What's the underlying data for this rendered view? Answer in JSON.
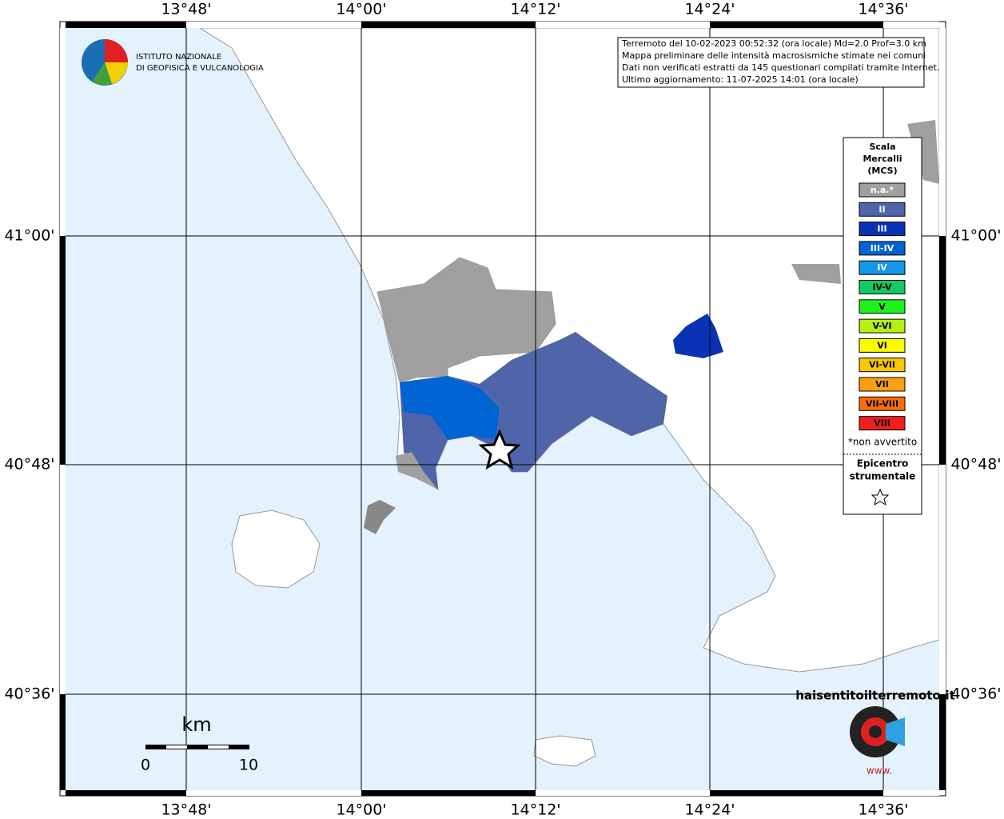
{
  "header": {
    "lines": [
      "Terremoto del 10-02-2023 00:52:32 (ora locale) Md=2.0 Prof=3.0 km",
      "Mappa preliminare delle intensità macrosismiche stimate nei comuni",
      "Dati non verificati estratti da 145 questionari compilati tramite Internet.",
      "Ultimo aggiornamento: 11-07-2025 14:01 (ora locale)"
    ]
  },
  "logo": {
    "lines": [
      "ISTITUTO NAZIONALE",
      "DI GEOFISICA E VULCANOLOGIA"
    ]
  },
  "grid": {
    "lon_labels": [
      "13°48'",
      "14°00'",
      "14°12'",
      "14°24'",
      "14°36'"
    ],
    "lat_labels": [
      "41°00'",
      "40°48'",
      "40°36'"
    ]
  },
  "legend": {
    "title_lines": [
      "Scala",
      "Mercalli",
      "(MCS)"
    ],
    "entries": [
      {
        "label": "n.a.*",
        "color": "#a0a0a0"
      },
      {
        "label": "II",
        "color": "#5064aa"
      },
      {
        "label": "III",
        "color": "#0a32b4"
      },
      {
        "label": "III-IV",
        "color": "#0064d2"
      },
      {
        "label": "IV",
        "color": "#1496e6"
      },
      {
        "label": "IV-V",
        "color": "#14c864"
      },
      {
        "label": "V",
        "color": "#1ef01e"
      },
      {
        "label": "V-VI",
        "color": "#b4f014"
      },
      {
        "label": "VI",
        "color": "#fafa00"
      },
      {
        "label": "VI-VII",
        "color": "#fac800"
      },
      {
        "label": "VII",
        "color": "#faa014"
      },
      {
        "label": "VII-VIII",
        "color": "#fa6e0a"
      },
      {
        "label": "VIII",
        "color": "#f01e1e"
      }
    ],
    "note": "*non avvertito",
    "epicenter_lines": [
      "Epicentro",
      "strumentale"
    ]
  },
  "scale": {
    "unit": "km",
    "start": "0",
    "end": "10"
  },
  "site_logo": {
    "text": "haisentitoilterremoto.it",
    "prefix": "www."
  }
}
